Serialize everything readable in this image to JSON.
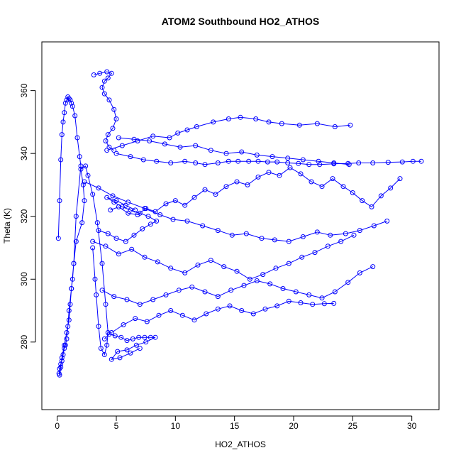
{
  "chart_data": {
    "type": "scatter",
    "title": "ATOM2 Southbound HO2_ATHOS",
    "xlabel": "HO2_ATHOS",
    "ylabel": "Theta (K)",
    "xlim": [
      -1.3,
      32.3
    ],
    "ylim": [
      258.5,
      375.5
    ],
    "xticks": [
      0,
      5,
      10,
      15,
      20,
      25,
      30
    ],
    "yticks": [
      280,
      300,
      320,
      340,
      360
    ],
    "grid": false,
    "legend": "none",
    "marker": "open-circle",
    "connected": true,
    "series_color": "#0000ff",
    "series": [
      {
        "x": [
          0.1,
          0.2,
          0.3,
          0.4,
          0.5,
          0.6,
          0.7,
          0.8,
          0.9,
          1.0,
          1.1,
          1.2,
          1.3,
          1.5,
          1.7,
          1.9,
          2.0,
          1.6,
          1.4,
          1.2,
          1.0,
          0.9,
          0.8,
          0.7,
          0.6,
          0.5,
          0.4,
          0.3,
          0.2,
          0.15,
          0.2,
          0.3,
          0.4,
          0.6,
          0.8,
          1.0,
          1.1,
          1.2,
          1.3,
          1.4,
          1.6,
          2.1,
          2.3,
          2.2,
          2.0,
          2.4,
          2.6,
          3.0,
          3.4,
          3.8,
          4.1,
          4.3,
          4.2,
          4.0,
          3.7,
          3.5,
          3.3,
          3.2,
          3.0
        ],
        "y": [
          313,
          325,
          338,
          346,
          350,
          353,
          356,
          357,
          358,
          357.5,
          357,
          356,
          355,
          352,
          345,
          339,
          336,
          320,
          305,
          297,
          290,
          285,
          281,
          279,
          278,
          276,
          274,
          273,
          271.5,
          270,
          269.5,
          272,
          275,
          279,
          283,
          287,
          292,
          297,
          300,
          305,
          312,
          318,
          325,
          330,
          335,
          336,
          333,
          327,
          318,
          305,
          292,
          283,
          279,
          276,
          278,
          285,
          295,
          300,
          310
        ]
      },
      {
        "x": [
          3.1,
          3.6,
          4.2,
          4.6,
          4.3,
          4.0,
          3.8,
          4.0,
          4.4,
          4.8,
          5.0,
          4.7,
          4.3,
          4.1,
          4.4,
          4.8
        ],
        "y": [
          365,
          365.5,
          366,
          365.5,
          364,
          363,
          361,
          359,
          357,
          354,
          351,
          348,
          346,
          344,
          342,
          341
        ]
      },
      {
        "x": [
          4.2,
          5.5,
          6.8,
          8.1,
          9.5,
          10.2,
          11.0,
          11.8,
          13.2,
          14.5,
          15.5,
          16.8,
          17.9,
          19.0,
          20.5,
          22.0,
          23.5,
          24.8
        ],
        "y": [
          341,
          342.5,
          344,
          345.5,
          345,
          346.5,
          347.5,
          348.5,
          350,
          351,
          351.5,
          351,
          350,
          349.5,
          349,
          349.5,
          348.5,
          349
        ]
      },
      {
        "x": [
          5.0,
          6.2,
          7.3,
          8.4,
          9.6,
          10.8,
          11.7,
          12.5,
          13.6,
          14.5,
          15.3,
          16.2,
          17.0,
          17.8,
          18.6,
          19.5,
          20.4,
          21.3,
          22.2,
          23.4,
          24.6,
          25.5,
          26.7,
          28.0,
          29.2,
          30.1,
          30.8
        ],
        "y": [
          340,
          339,
          338,
          337.5,
          337,
          337.5,
          337,
          336.5,
          337,
          337.5,
          337.5,
          337.5,
          337.5,
          337.3,
          337.3,
          337,
          336.8,
          336.5,
          336.5,
          336.7,
          336.8,
          337,
          337,
          337.2,
          337.3,
          337.5,
          337.5
        ]
      },
      {
        "x": [
          4.5,
          5.2,
          6.0,
          6.8,
          7.5,
          8.3,
          9.2,
          10.0,
          10.8,
          11.6,
          12.5,
          13.4,
          14.3,
          15.2,
          16.1,
          17.0,
          17.9,
          18.8,
          19.7,
          20.6,
          21.5,
          22.4,
          23.3,
          24.2,
          25.0,
          25.8,
          26.6,
          27.4,
          28.2,
          29.0
        ],
        "y": [
          322,
          323,
          321,
          320.5,
          322.5,
          321.5,
          324,
          325,
          323.5,
          326,
          328.5,
          327,
          329.5,
          331,
          330,
          332.5,
          334,
          333,
          335.5,
          333.5,
          331,
          329.5,
          332,
          329.5,
          327.5,
          325,
          323,
          326.5,
          329,
          332
        ]
      },
      {
        "x": [
          2.3,
          3.5,
          4.7,
          6.0,
          7.4,
          8.7,
          9.8,
          11.0,
          12.3,
          13.6,
          14.8,
          16.0,
          17.3,
          18.4,
          19.6,
          20.8,
          22.0,
          23.1,
          24.4,
          25.6,
          26.8,
          27.9
        ],
        "y": [
          331,
          329,
          326.5,
          324.5,
          322.5,
          320.5,
          319,
          318.5,
          317,
          315.5,
          314,
          314.5,
          313,
          312.5,
          312,
          313.5,
          315,
          314,
          314.5,
          315.5,
          317,
          318.5
        ]
      },
      {
        "x": [
          3.0,
          4.1,
          5.2,
          6.3,
          7.4,
          8.5,
          9.6,
          10.8,
          11.9,
          13.0,
          14.1,
          15.2,
          16.3,
          17.4,
          18.5,
          19.6,
          20.7,
          21.8,
          22.9,
          24.0,
          25.1
        ],
        "y": [
          312,
          310.5,
          308,
          309.5,
          307,
          305.5,
          303.5,
          302,
          304.5,
          306,
          304,
          302.5,
          300,
          301.5,
          303.5,
          305,
          307,
          308.5,
          310.5,
          312,
          314
        ]
      },
      {
        "x": [
          3.8,
          4.8,
          5.9,
          7.0,
          8.1,
          9.2,
          10.3,
          11.4,
          12.5,
          13.6,
          14.7,
          15.8,
          16.9,
          18.0,
          19.1,
          20.2,
          21.3,
          22.4,
          23.5,
          24.6,
          25.6,
          26.7
        ],
        "y": [
          296.5,
          294.5,
          293.5,
          292,
          293.5,
          295,
          296.5,
          297.5,
          296,
          294.5,
          296.5,
          298,
          299.5,
          298.5,
          297,
          296,
          295,
          294,
          296,
          299,
          302,
          304
        ]
      },
      {
        "x": [
          4.6,
          5.6,
          6.6,
          7.6,
          8.6,
          9.6,
          10.6,
          11.6,
          12.6,
          13.6,
          14.6,
          15.6,
          16.6,
          17.6,
          18.6,
          19.6,
          20.6,
          21.6,
          22.6,
          23.4
        ],
        "y": [
          283,
          285.5,
          287.5,
          286.5,
          288.5,
          290,
          288.5,
          287,
          289,
          290.5,
          291.5,
          290,
          289,
          290.5,
          291.5,
          293,
          292.5,
          292,
          292.2,
          292.3
        ]
      },
      {
        "x": [
          4.0,
          4.4,
          4.9,
          5.4,
          5.9,
          6.4,
          6.9,
          7.4,
          7.9,
          8.3,
          7.5,
          6.7,
          5.9,
          5.1,
          4.6,
          5.3,
          6.2,
          7.0
        ],
        "y": [
          281,
          282.5,
          282,
          281.5,
          280.5,
          281,
          281.5,
          281.5,
          281.5,
          281.5,
          280,
          279,
          277.5,
          277,
          274.5,
          275,
          276.5,
          278
        ]
      },
      {
        "x": [
          3.5,
          4.3,
          5.0,
          5.8,
          6.5,
          7.2,
          7.9,
          8.4,
          7.7,
          7.0,
          6.2,
          5.5,
          4.8,
          4.2,
          5.0,
          5.8,
          6.6
        ],
        "y": [
          315.5,
          314.5,
          313,
          312,
          314,
          316,
          317.5,
          318.5,
          320,
          321,
          322,
          323,
          324.5,
          326,
          325,
          323.5,
          322
        ]
      },
      {
        "x": [
          5.2,
          6.5,
          7.8,
          9.1,
          10.4,
          11.7,
          13.0,
          14.3,
          15.6,
          16.9,
          18.2,
          19.5,
          20.8,
          22.1,
          23.4,
          24.7
        ],
        "y": [
          345,
          344.5,
          344,
          343,
          342,
          342.5,
          341,
          340,
          340.5,
          339.5,
          339,
          338.5,
          338,
          337.5,
          337,
          336.5
        ]
      }
    ]
  }
}
